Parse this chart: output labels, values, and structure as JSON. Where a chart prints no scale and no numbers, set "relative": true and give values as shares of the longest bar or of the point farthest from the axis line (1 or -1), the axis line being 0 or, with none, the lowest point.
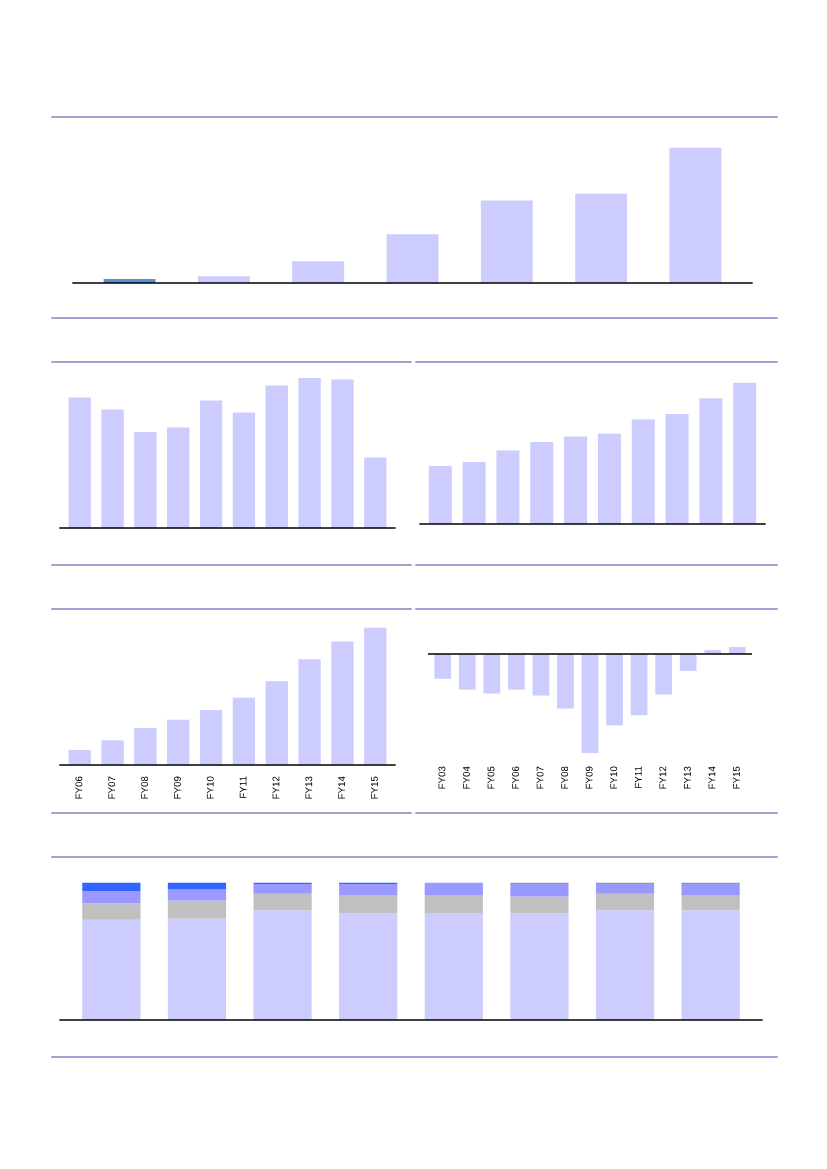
{
  "chart_data": [
    {
      "type": "bar",
      "relative": true,
      "categories": [
        null,
        null,
        null,
        null,
        null,
        null,
        null
      ],
      "values": [
        0.03,
        0.05,
        0.16,
        0.36,
        0.61,
        0.66,
        1
      ],
      "colors": [
        "#5b8fd9",
        "#ccccff",
        "#ccccff",
        "#ccccff",
        "#ccccff",
        "#ccccff",
        "#ccccff"
      ],
      "grid": false,
      "legend": false
    },
    {
      "type": "bar",
      "relative": true,
      "categories": [
        null,
        null,
        null,
        null,
        null,
        null,
        null,
        null,
        null,
        null
      ],
      "values": [
        0.87,
        0.79,
        0.64,
        0.67,
        0.85,
        0.77,
        0.95,
        1,
        0.99,
        0.47
      ],
      "colors": [
        "#ccccff",
        "#ccccff",
        "#ccccff",
        "#ccccff",
        "#ccccff",
        "#ccccff",
        "#ccccff",
        "#ccccff",
        "#ccccff",
        "#ccccff"
      ],
      "grid": false,
      "legend": false
    },
    {
      "type": "bar",
      "relative": true,
      "categories": [
        null,
        null,
        null,
        null,
        null,
        null,
        null,
        null,
        null,
        null
      ],
      "values": [
        0.41,
        0.44,
        0.52,
        0.58,
        0.62,
        0.64,
        0.74,
        0.78,
        0.89,
        1
      ],
      "colors": [
        "#ccccff",
        "#ccccff",
        "#ccccff",
        "#ccccff",
        "#ccccff",
        "#ccccff",
        "#ccccff",
        "#ccccff",
        "#ccccff",
        "#ccccff"
      ],
      "grid": false,
      "legend": false
    },
    {
      "type": "bar",
      "relative": true,
      "categories": [
        "FY06",
        "FY07",
        "FY08",
        "FY09",
        "FY10",
        "FY11",
        "FY12",
        "FY13",
        "FY14",
        "FY15"
      ],
      "values": [
        0.11,
        0.18,
        0.27,
        0.33,
        0.4,
        0.49,
        0.61,
        0.77,
        0.9,
        1
      ],
      "colors": [
        "#ccccff",
        "#ccccff",
        "#ccccff",
        "#ccccff",
        "#ccccff",
        "#ccccff",
        "#ccccff",
        "#ccccff",
        "#ccccff",
        "#ccccff"
      ],
      "grid": false,
      "legend": false
    },
    {
      "type": "bar",
      "relative": true,
      "categories": [
        "FY03",
        "FY04",
        "FY05",
        "FY06",
        "FY07",
        "FY08",
        "FY09",
        "FY10",
        "FY11",
        "FY12",
        "FY13",
        "FY14",
        "FY15"
      ],
      "values": [
        -0.25,
        -0.36,
        -0.4,
        -0.36,
        -0.42,
        -0.55,
        -1,
        -0.72,
        -0.62,
        -0.41,
        -0.17,
        0.04,
        0.07
      ],
      "colors": [
        "#ccccff",
        "#ccccff",
        "#ccccff",
        "#ccccff",
        "#ccccff",
        "#ccccff",
        "#ccccff",
        "#ccccff",
        "#ccccff",
        "#ccccff",
        "#ccccff",
        "#ccccff",
        "#ccccff"
      ],
      "grid": false,
      "legend": false
    },
    {
      "type": "bar",
      "relative": true,
      "stacked": true,
      "categories": [
        null,
        null,
        null,
        null,
        null,
        null,
        null,
        null
      ],
      "grid": false,
      "legend": false,
      "series": [
        {
          "color": "#ccccff",
          "values": [
            0.73,
            0.74,
            0.8,
            0.78,
            0.78,
            0.78,
            0.8,
            0.8
          ]
        },
        {
          "color": "#c0c0c0",
          "values": [
            0.12,
            0.13,
            0.12,
            0.13,
            0.13,
            0.12,
            0.12,
            0.11
          ]
        },
        {
          "color": "#9999ff",
          "values": [
            0.09,
            0.08,
            0.07,
            0.08,
            0.09,
            0.09,
            0.07,
            0.08
          ]
        },
        {
          "color": "#969696",
          "values": [
            0,
            0,
            0,
            0,
            0,
            0.01,
            0.01,
            0.01
          ]
        },
        {
          "color": "#3366ff",
          "values": [
            0.06,
            0.05,
            0.01,
            0.01,
            0,
            0,
            0,
            0
          ]
        }
      ]
    }
  ]
}
